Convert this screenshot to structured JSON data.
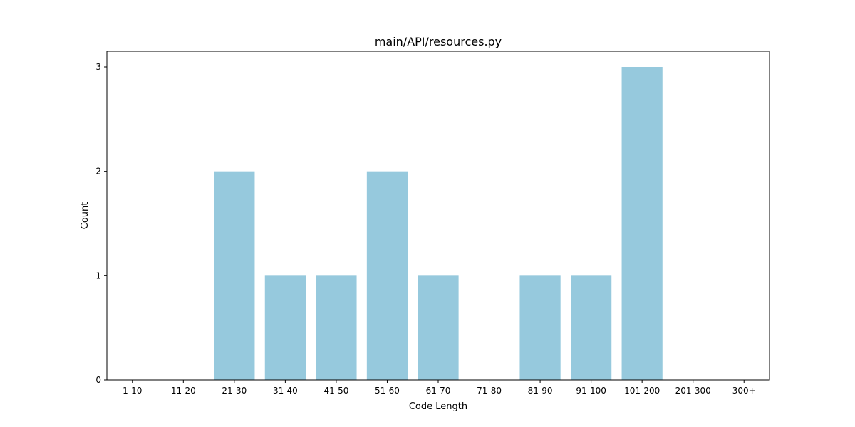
{
  "chart_data": {
    "type": "bar",
    "title": "main/API/resources.py",
    "xlabel": "Code Length",
    "ylabel": "Count",
    "categories": [
      "1-10",
      "11-20",
      "21-30",
      "31-40",
      "41-50",
      "51-60",
      "61-70",
      "71-80",
      "81-90",
      "91-100",
      "101-200",
      "201-300",
      "300+"
    ],
    "values": [
      0,
      0,
      2,
      1,
      1,
      2,
      1,
      0,
      1,
      1,
      3,
      0,
      0
    ],
    "ylim": [
      0,
      3.15
    ],
    "yticks": [
      0,
      1,
      2,
      3
    ],
    "grid": false,
    "colors": {
      "bar": "#96c9dd",
      "axis": "#000000",
      "text": "#000000",
      "background": "#ffffff"
    }
  }
}
